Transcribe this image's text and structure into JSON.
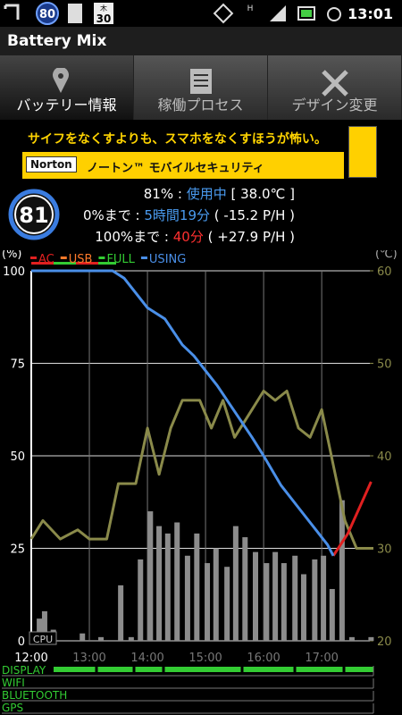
{
  "status_bar": {
    "badge": "80",
    "calendar_day": "木",
    "calendar_date": "30",
    "network": "H",
    "time": "13:01"
  },
  "app_title": "Battery Mix",
  "tabs": [
    "バッテリー情報",
    "稼働プロセス",
    "デザイン変更"
  ],
  "ad": {
    "headline": "サイフをなくすよりも、スマホをなくすほうが怖い。",
    "brand": "Norton",
    "product": "ノートン™ モバイルセキュリティ"
  },
  "info": {
    "level": "81",
    "lines": [
      {
        "label": "81% :",
        "value": "使用中",
        "extra": "[ 38.0℃ ]"
      },
      {
        "label": "0%まで :",
        "value": "5時間19分",
        "extra": "( -15.2 P/H )"
      },
      {
        "label": "100%まで :",
        "value": "40分",
        "extra": "( +27.9 P/H )"
      }
    ]
  },
  "chart_data": {
    "type": "line",
    "ylabel": "(%)",
    "y2label": "(℃)",
    "grid": true,
    "xlim": [
      12,
      17.89
    ],
    "ylim": [
      0,
      100
    ],
    "y2lim": [
      20,
      60
    ],
    "xticks": [
      {
        "value": 12,
        "label": "12:00"
      },
      {
        "value": 13,
        "label": "13:00"
      },
      {
        "value": 14,
        "label": "14:00"
      },
      {
        "value": 15,
        "label": "15:00"
      },
      {
        "value": 16,
        "label": "16:00"
      },
      {
        "value": 17,
        "label": "17:00"
      }
    ],
    "yticks": [
      0,
      25,
      50,
      75,
      100
    ],
    "y2ticks": [
      20,
      30,
      40,
      50,
      60
    ],
    "series": [
      {
        "name": "AC",
        "color": "#e02020",
        "x": [
          17.2,
          17.45,
          17.65,
          17.85
        ],
        "values": [
          23,
          29,
          36,
          43
        ]
      },
      {
        "name": "USB",
        "color": "#ff7a2a",
        "x": [],
        "values": []
      },
      {
        "name": "FULL",
        "color": "#33cc33",
        "x": [],
        "values": []
      },
      {
        "name": "USING",
        "color": "#4a8fe8",
        "x": [
          12,
          13.4,
          13.6,
          13.8,
          14.0,
          14.3,
          14.6,
          14.8,
          15.0,
          15.2,
          15.5,
          15.8,
          16.0,
          16.3,
          16.6,
          16.9,
          17.1,
          17.2
        ],
        "values": [
          100,
          100,
          98,
          94,
          90,
          87,
          80,
          77,
          73,
          69,
          62,
          55,
          50,
          42,
          36,
          30,
          26,
          23
        ]
      },
      {
        "axis": "y2",
        "color": "#8a8a4a",
        "x": [
          12,
          12.2,
          12.5,
          12.8,
          13.0,
          13.3,
          13.5,
          13.8,
          14.0,
          14.2,
          14.4,
          14.6,
          14.9,
          15.1,
          15.3,
          15.5,
          15.8,
          16.0,
          16.2,
          16.4,
          16.6,
          16.8,
          17.0,
          17.2,
          17.4,
          17.6,
          17.89
        ],
        "values": [
          31,
          33,
          31,
          32,
          31,
          31,
          37,
          37,
          43,
          38,
          43,
          46,
          46,
          43,
          46,
          42,
          45,
          47,
          46,
          47,
          43,
          42,
          45,
          39,
          33,
          30,
          30
        ]
      },
      {
        "name": "CPU",
        "type": "bar",
        "color": "#8c8c8c",
        "x": [
          12.14,
          12.23,
          12.38,
          12.88,
          13.2,
          13.54,
          13.72,
          13.88,
          14.05,
          14.2,
          14.35,
          14.51,
          14.69,
          14.85,
          15.03,
          15.18,
          15.37,
          15.52,
          15.68,
          15.86,
          16.05,
          16.2,
          16.35,
          16.54,
          16.69,
          16.88,
          17.03,
          17.18,
          17.35,
          17.52,
          17.85
        ],
        "values": [
          6,
          8,
          3,
          2,
          1,
          15,
          1,
          22,
          35,
          31,
          29,
          32,
          23,
          29,
          21,
          25,
          20,
          31,
          28,
          24,
          21,
          24,
          21,
          23,
          18,
          22,
          23,
          14,
          38,
          1,
          1
        ]
      }
    ]
  },
  "status_rows": [
    "DISPLAY",
    "WIFI",
    "BLUETOOTH",
    "GPS"
  ]
}
